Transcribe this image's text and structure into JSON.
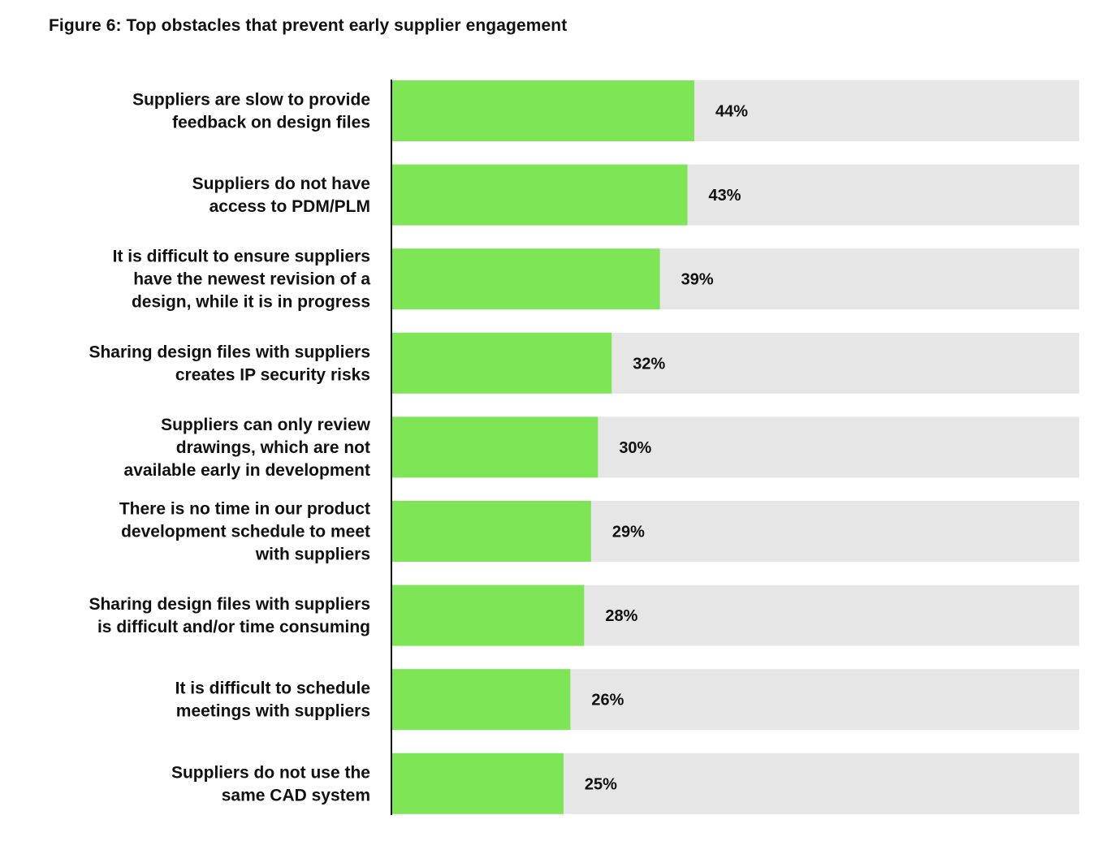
{
  "figure": {
    "title": "Figure 6: Top obstacles that prevent early supplier engagement"
  },
  "chart_data": {
    "type": "bar",
    "orientation": "horizontal",
    "title": "Figure 6: Top obstacles that prevent early supplier engagement",
    "xlim": [
      0,
      100
    ],
    "unit": "%",
    "grid": false,
    "bar_color": "#7ee656",
    "track_color": "#e6e6e6",
    "categories": [
      "Suppliers are slow to provide feedback on design files",
      "Suppliers do not have access to PDM/PLM",
      "It is difficult to ensure suppliers have the newest revision of a design, while it is in progress",
      "Sharing design files with suppliers creates IP security risks",
      "Suppliers can only review drawings, which are not available early in development",
      "There is no time in our product development schedule to meet with suppliers",
      "Sharing design files with suppliers is difficult and/or time consuming",
      "It is difficult to schedule meetings with suppliers",
      "Suppliers do not use the same CAD system"
    ],
    "category_lines": [
      [
        "Suppliers are slow to provide",
        "feedback on design files"
      ],
      [
        "Suppliers do not have",
        "access to PDM/PLM"
      ],
      [
        "It is difficult to ensure suppliers",
        "have the newest revision of a",
        "design, while it is in progress"
      ],
      [
        "Sharing design files with suppliers",
        "creates IP security risks"
      ],
      [
        "Suppliers can only review",
        "drawings, which are not",
        "available early in development"
      ],
      [
        "There is no time in our product",
        "development schedule to meet",
        "with suppliers"
      ],
      [
        "Sharing design files with suppliers",
        "is difficult and/or time consuming"
      ],
      [
        "It is difficult to schedule",
        "meetings with suppliers"
      ],
      [
        "Suppliers do not use the",
        "same CAD system"
      ]
    ],
    "values": [
      44,
      43,
      39,
      32,
      30,
      29,
      28,
      26,
      25
    ],
    "value_labels": [
      "44%",
      "43%",
      "39%",
      "32%",
      "30%",
      "29%",
      "28%",
      "26%",
      "25%"
    ]
  }
}
